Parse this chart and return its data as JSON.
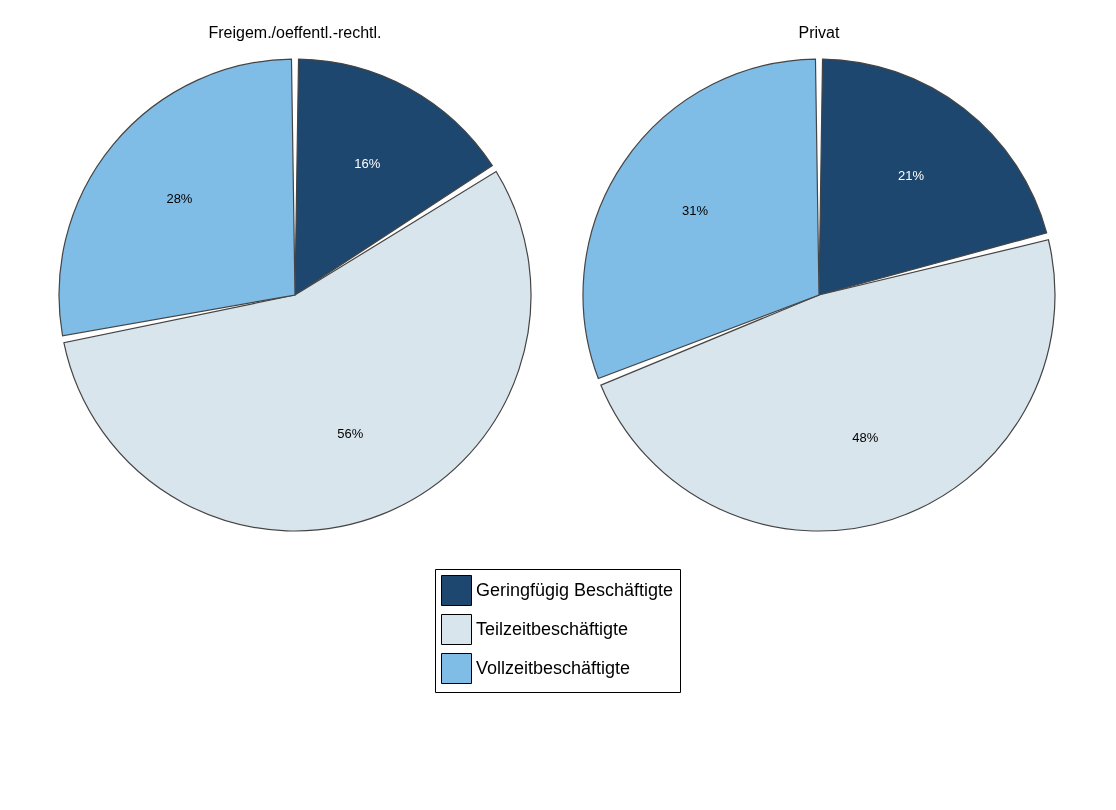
{
  "chart_data": [
    {
      "type": "pie",
      "title": "Freigem./oeffentl.-rechtl.",
      "categories": [
        "Geringfügig Beschäftigte",
        "Teilzeitbeschäftigte",
        "Vollzeitbeschäftigte"
      ],
      "values": [
        16,
        56,
        28
      ],
      "colors": [
        "#1d476e",
        "#d9e5ec",
        "#80bde6"
      ],
      "value_labels": [
        "16%",
        "56%",
        "28%"
      ],
      "legend": "bottom"
    },
    {
      "type": "pie",
      "title": "Privat",
      "categories": [
        null,
        null,
        null
      ],
      "values": [
        21,
        48,
        31
      ],
      "colors": [
        "#1d476e",
        "#d9e5ec",
        "#80bde6"
      ],
      "value_labels": [
        "21%",
        "48%",
        "31%"
      ]
    }
  ]
}
